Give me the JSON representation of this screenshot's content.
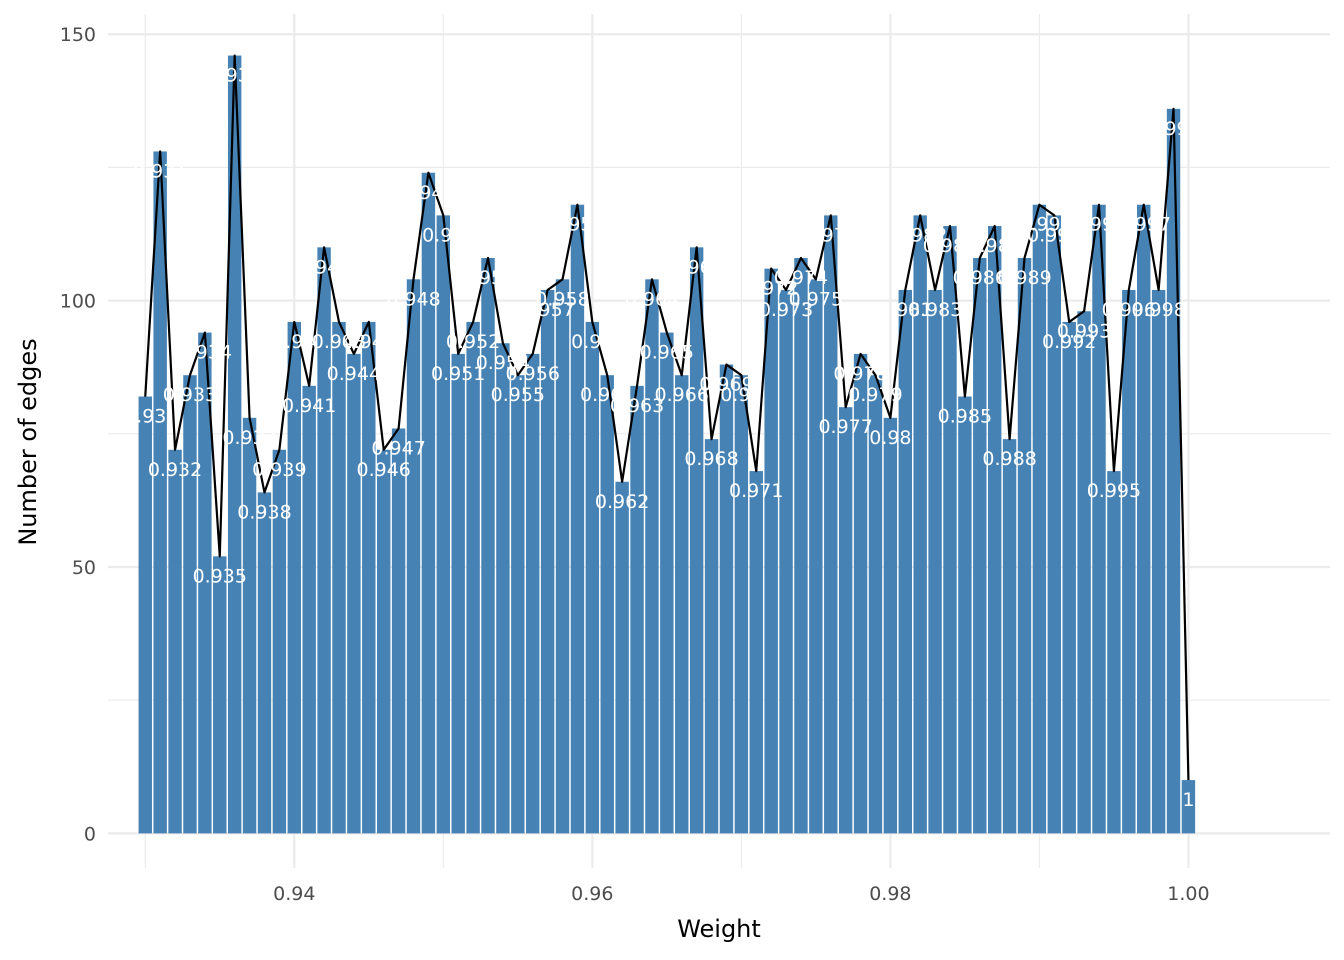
{
  "chart_data": {
    "type": "bar",
    "xlabel": "Weight",
    "ylabel": "Number of edges",
    "xlim": [
      0.9275,
      1.0095
    ],
    "ylim": [
      -6.5,
      153.8
    ],
    "x_ticks": [
      0.94,
      0.96,
      0.98,
      1.0
    ],
    "x_tick_labels": [
      "0.94",
      "0.96",
      "0.98",
      "1.00"
    ],
    "y_ticks": [
      0,
      50,
      100,
      150
    ],
    "y_tick_labels": [
      "0",
      "50",
      "100",
      "150"
    ],
    "grid": true,
    "legend": "none",
    "overlay": "line connecting bar tops",
    "categories": [
      "0.93",
      "0.931",
      "0.932",
      "0.933",
      "0.934",
      "0.935",
      "0.936",
      "0.937",
      "0.938",
      "0.939",
      "0.94",
      "0.941",
      "0.942",
      "0.943",
      "0.944",
      "0.945",
      "0.946",
      "0.947",
      "0.948",
      "0.949",
      "0.95",
      "0.951",
      "0.952",
      "0.953",
      "0.954",
      "0.955",
      "0.956",
      "0.957",
      "0.958",
      "0.959",
      "0.96",
      "0.961",
      "0.962",
      "0.963",
      "0.964",
      "0.965",
      "0.966",
      "0.967",
      "0.968",
      "0.969",
      "0.97",
      "0.971",
      "0.972",
      "0.973",
      "0.974",
      "0.975",
      "0.976",
      "0.977",
      "0.978",
      "0.979",
      "0.98",
      "0.981",
      "0.982",
      "0.983",
      "0.984",
      "0.985",
      "0.986",
      "0.987",
      "0.988",
      "0.989",
      "0.99",
      "0.991",
      "0.992",
      "0.993",
      "0.994",
      "0.995",
      "0.996",
      "0.997",
      "0.998",
      "0.999",
      "1"
    ],
    "x": [
      0.93,
      0.931,
      0.932,
      0.933,
      0.934,
      0.935,
      0.936,
      0.937,
      0.938,
      0.939,
      0.94,
      0.941,
      0.942,
      0.943,
      0.944,
      0.945,
      0.946,
      0.947,
      0.948,
      0.949,
      0.95,
      0.951,
      0.952,
      0.953,
      0.954,
      0.955,
      0.956,
      0.957,
      0.958,
      0.959,
      0.96,
      0.961,
      0.962,
      0.963,
      0.964,
      0.965,
      0.966,
      0.967,
      0.968,
      0.969,
      0.97,
      0.971,
      0.972,
      0.973,
      0.974,
      0.975,
      0.976,
      0.977,
      0.978,
      0.979,
      0.98,
      0.981,
      0.982,
      0.983,
      0.984,
      0.985,
      0.986,
      0.987,
      0.988,
      0.989,
      0.99,
      0.991,
      0.992,
      0.993,
      0.994,
      0.995,
      0.996,
      0.997,
      0.998,
      0.999,
      1.0
    ],
    "values": [
      82,
      128,
      72,
      86,
      94,
      52,
      146,
      78,
      64,
      72,
      96,
      84,
      110,
      96,
      90,
      96,
      72,
      76,
      104,
      124,
      116,
      90,
      96,
      108,
      92,
      86,
      90,
      102,
      104,
      118,
      96,
      86,
      66,
      84,
      104,
      94,
      86,
      110,
      74,
      88,
      86,
      68,
      106,
      102,
      108,
      104,
      116,
      80,
      90,
      86,
      78,
      102,
      116,
      102,
      114,
      82,
      108,
      114,
      74,
      108,
      118,
      116,
      96,
      98,
      118,
      68,
      102,
      118,
      102,
      136,
      10
    ],
    "colors": {
      "bar": "#4682b4",
      "line": "#000000",
      "label": "#ffffff",
      "grid": "#ebebeb"
    }
  }
}
